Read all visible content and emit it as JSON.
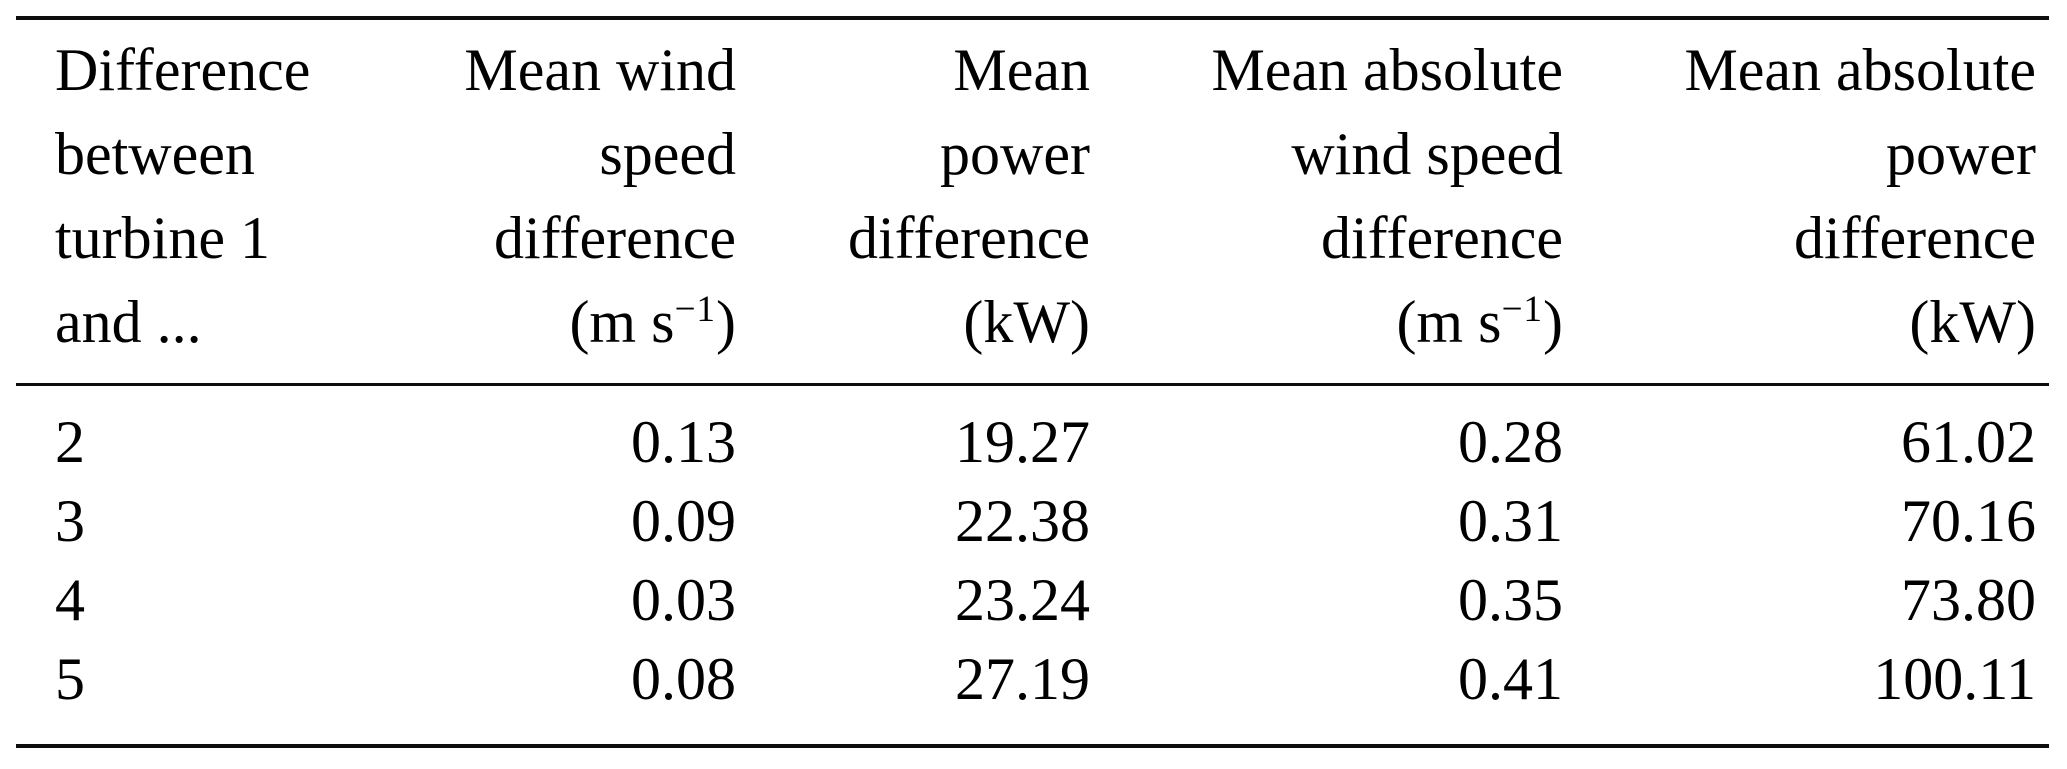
{
  "page": {
    "background_color": "#ffffff",
    "text_color": "#000000",
    "rule_color": "#0d0d0d"
  },
  "table": {
    "columns": [
      {
        "id": "turbine",
        "align": "left",
        "line1": "Difference",
        "line2": "between",
        "line3": "turbine 1",
        "line4": "and ..."
      },
      {
        "id": "mean_wind_speed_diff",
        "align": "right",
        "line1": "Mean wind",
        "line2": "speed",
        "line3": "difference",
        "unit_pre": "(m s",
        "unit_sup": "−1",
        "unit_post": ")"
      },
      {
        "id": "mean_power_diff",
        "align": "right",
        "line1": "Mean",
        "line2": "power",
        "line3": "difference",
        "unit_pre": "(kW)",
        "unit_sup": "",
        "unit_post": ""
      },
      {
        "id": "mean_abs_wind_speed_diff",
        "align": "right",
        "line1": "Mean absolute",
        "line2": "wind speed",
        "line3": "difference",
        "unit_pre": "(m s",
        "unit_sup": "−1",
        "unit_post": ")"
      },
      {
        "id": "mean_abs_power_diff",
        "align": "right",
        "line1": "Mean absolute",
        "line2": "power",
        "line3": "difference",
        "unit_pre": "(kW)",
        "unit_sup": "",
        "unit_post": ""
      }
    ],
    "rows": [
      {
        "turbine": "2",
        "mean_wind_speed_diff": "0.13",
        "mean_power_diff": "19.27",
        "mean_abs_wind_speed_diff": "0.28",
        "mean_abs_power_diff": "61.02"
      },
      {
        "turbine": "3",
        "mean_wind_speed_diff": "0.09",
        "mean_power_diff": "22.38",
        "mean_abs_wind_speed_diff": "0.31",
        "mean_abs_power_diff": "70.16"
      },
      {
        "turbine": "4",
        "mean_wind_speed_diff": "0.03",
        "mean_power_diff": "23.24",
        "mean_abs_wind_speed_diff": "0.35",
        "mean_abs_power_diff": "73.80"
      },
      {
        "turbine": "5",
        "mean_wind_speed_diff": "0.08",
        "mean_power_diff": "27.19",
        "mean_abs_wind_speed_diff": "0.41",
        "mean_abs_power_diff": "100.11"
      }
    ]
  },
  "chart_data": {
    "type": "table",
    "title": "",
    "categories": [
      "2",
      "3",
      "4",
      "5"
    ],
    "series": [
      {
        "name": "Mean wind speed difference (m s−1)",
        "values": [
          0.13,
          0.09,
          0.03,
          0.08
        ]
      },
      {
        "name": "Mean power difference (kW)",
        "values": [
          19.27,
          22.38,
          23.24,
          27.19
        ]
      },
      {
        "name": "Mean absolute wind speed difference (m s−1)",
        "values": [
          0.28,
          0.31,
          0.35,
          0.41
        ]
      },
      {
        "name": "Mean absolute power difference (kW)",
        "values": [
          61.02,
          70.16,
          73.8,
          100.11
        ]
      }
    ]
  }
}
